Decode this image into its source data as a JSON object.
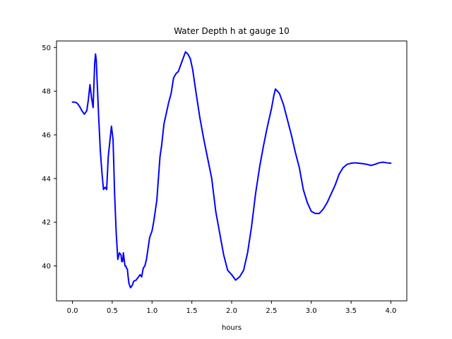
{
  "chart_data": {
    "type": "line",
    "title": "Water Depth h at gauge 10",
    "xlabel": "hours",
    "ylabel": "",
    "xlim": [
      -0.2,
      4.2
    ],
    "ylim": [
      38.4,
      50.3
    ],
    "xticks": [
      0.0,
      0.5,
      1.0,
      1.5,
      2.0,
      2.5,
      3.0,
      3.5,
      4.0
    ],
    "xtick_labels": [
      "0.0",
      "0.5",
      "1.0",
      "1.5",
      "2.0",
      "2.5",
      "3.0",
      "3.5",
      "4.0"
    ],
    "yticks": [
      40,
      42,
      44,
      46,
      48,
      50
    ],
    "ytick_labels": [
      "40",
      "42",
      "44",
      "46",
      "48",
      "50"
    ],
    "grid": false,
    "series": [
      {
        "color": "#0000ff",
        "x": [
          0.0,
          0.03,
          0.06,
          0.09,
          0.12,
          0.15,
          0.18,
          0.2,
          0.22,
          0.24,
          0.26,
          0.28,
          0.29,
          0.3,
          0.31,
          0.33,
          0.35,
          0.37,
          0.39,
          0.41,
          0.43,
          0.45,
          0.47,
          0.49,
          0.51,
          0.52,
          0.53,
          0.55,
          0.57,
          0.59,
          0.61,
          0.62,
          0.63,
          0.64,
          0.65,
          0.66,
          0.67,
          0.68,
          0.69,
          0.7,
          0.71,
          0.73,
          0.75,
          0.77,
          0.8,
          0.83,
          0.85,
          0.87,
          0.89,
          0.91,
          0.93,
          0.95,
          0.97,
          1.0,
          1.02,
          1.04,
          1.06,
          1.08,
          1.1,
          1.12,
          1.15,
          1.18,
          1.21,
          1.24,
          1.27,
          1.3,
          1.33,
          1.36,
          1.39,
          1.42,
          1.45,
          1.48,
          1.51,
          1.55,
          1.6,
          1.65,
          1.7,
          1.75,
          1.8,
          1.85,
          1.9,
          1.95,
          2.0,
          2.05,
          2.1,
          2.15,
          2.2,
          2.25,
          2.3,
          2.35,
          2.4,
          2.45,
          2.5,
          2.53,
          2.55,
          2.6,
          2.65,
          2.7,
          2.75,
          2.8,
          2.85,
          2.9,
          2.95,
          3.0,
          3.05,
          3.1,
          3.15,
          3.2,
          3.25,
          3.3,
          3.35,
          3.4,
          3.45,
          3.5,
          3.55,
          3.6,
          3.65,
          3.7,
          3.75,
          3.8,
          3.85,
          3.9,
          3.95,
          4.0
        ],
        "y": [
          47.5,
          47.5,
          47.45,
          47.3,
          47.1,
          46.95,
          47.1,
          47.6,
          48.3,
          47.7,
          47.25,
          49.3,
          49.7,
          49.4,
          48.5,
          46.8,
          45.3,
          44.3,
          43.5,
          43.6,
          43.5,
          45.0,
          45.7,
          46.4,
          45.8,
          44.6,
          43.3,
          41.5,
          40.3,
          40.6,
          40.5,
          40.2,
          40.2,
          40.6,
          40.3,
          40.0,
          40.0,
          39.9,
          39.85,
          39.5,
          39.2,
          39.0,
          39.1,
          39.3,
          39.35,
          39.5,
          39.6,
          39.5,
          39.9,
          40.0,
          40.3,
          40.8,
          41.3,
          41.6,
          42.0,
          42.5,
          43.0,
          44.0,
          45.0,
          45.5,
          46.5,
          47.0,
          47.5,
          47.9,
          48.6,
          48.8,
          48.9,
          49.2,
          49.5,
          49.8,
          49.7,
          49.5,
          49.0,
          48.0,
          46.8,
          45.8,
          44.9,
          44.0,
          42.5,
          41.5,
          40.5,
          39.8,
          39.6,
          39.35,
          39.5,
          39.8,
          40.6,
          41.8,
          43.3,
          44.5,
          45.5,
          46.4,
          47.2,
          47.8,
          48.1,
          47.9,
          47.4,
          46.7,
          46.0,
          45.2,
          44.5,
          43.5,
          42.9,
          42.5,
          42.4,
          42.4,
          42.6,
          42.9,
          43.3,
          43.7,
          44.2,
          44.5,
          44.65,
          44.7,
          44.72,
          44.7,
          44.68,
          44.65,
          44.6,
          44.65,
          44.72,
          44.75,
          44.72,
          44.7
        ]
      }
    ]
  }
}
